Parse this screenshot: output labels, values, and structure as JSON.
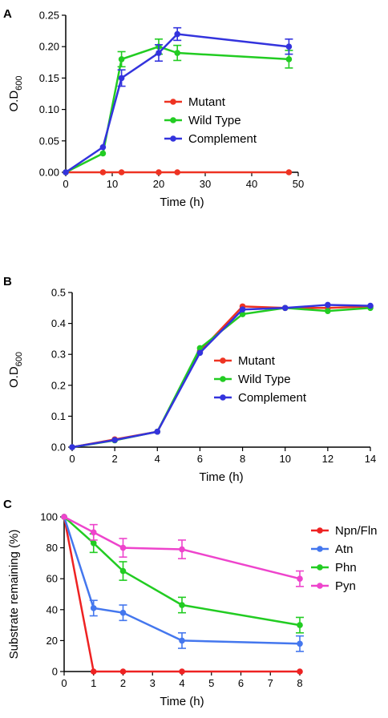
{
  "chart_data": [
    {
      "panel": "A",
      "type": "line",
      "xlabel": "Time (h)",
      "ylabel_main": "O.D",
      "ylabel_sub": "600",
      "xlim": [
        0,
        50
      ],
      "ylim": [
        0,
        0.25
      ],
      "xticks": [
        0,
        10,
        20,
        30,
        40,
        50
      ],
      "xtick_labels": [
        "0",
        "10",
        "20",
        "30",
        "40",
        "50"
      ],
      "yticks": [
        0,
        0.05,
        0.1,
        0.15,
        0.2,
        0.25
      ],
      "ytick_labels": [
        "0.00",
        "0.05",
        "0.10",
        "0.15",
        "0.20",
        "0.25"
      ],
      "legend_position": "center",
      "series": [
        {
          "name": "Mutant",
          "color": "#ee3322",
          "x": [
            0,
            8,
            12,
            20,
            24,
            48
          ],
          "y": [
            0,
            0,
            0,
            0,
            0,
            0
          ],
          "err": [
            0,
            0,
            0,
            0,
            0,
            0
          ]
        },
        {
          "name": "Wild Type",
          "color": "#22cc22",
          "x": [
            0,
            8,
            12,
            20,
            24,
            48
          ],
          "y": [
            0,
            0.03,
            0.18,
            0.2,
            0.19,
            0.18
          ],
          "err": [
            0,
            0,
            0.012,
            0.012,
            0.012,
            0.014
          ]
        },
        {
          "name": "Complement",
          "color": "#3333dd",
          "x": [
            0,
            8,
            12,
            20,
            24,
            48
          ],
          "y": [
            0,
            0.04,
            0.15,
            0.19,
            0.22,
            0.2
          ],
          "err": [
            0,
            0,
            0.013,
            0.013,
            0.01,
            0.012
          ]
        }
      ]
    },
    {
      "panel": "B",
      "type": "line",
      "xlabel": "Time (h)",
      "ylabel_main": "O.D",
      "ylabel_sub": "600",
      "xlim": [
        0,
        14
      ],
      "ylim": [
        0,
        0.5
      ],
      "xticks": [
        0,
        2,
        4,
        6,
        8,
        10,
        12,
        14
      ],
      "xtick_labels": [
        "0",
        "2",
        "4",
        "6",
        "8",
        "10",
        "12",
        "14"
      ],
      "yticks": [
        0,
        0.1,
        0.2,
        0.3,
        0.4,
        0.5
      ],
      "ytick_labels": [
        "0.0",
        "0.1",
        "0.2",
        "0.3",
        "0.4",
        "0.5"
      ],
      "legend_position": "center-right",
      "series": [
        {
          "name": "Mutant",
          "color": "#ee3322",
          "x": [
            0,
            2,
            4,
            6,
            8,
            10,
            12,
            14
          ],
          "y": [
            0,
            0.025,
            0.05,
            0.31,
            0.455,
            0.45,
            0.45,
            0.455
          ],
          "err": [
            0,
            0,
            0,
            0,
            0,
            0,
            0,
            0
          ]
        },
        {
          "name": "Wild Type",
          "color": "#22cc22",
          "x": [
            0,
            2,
            4,
            6,
            8,
            10,
            12,
            14
          ],
          "y": [
            0,
            0.022,
            0.05,
            0.32,
            0.43,
            0.45,
            0.44,
            0.45
          ],
          "err": [
            0,
            0,
            0,
            0,
            0,
            0,
            0,
            0
          ]
        },
        {
          "name": "Complement",
          "color": "#3333dd",
          "x": [
            0,
            2,
            4,
            6,
            8,
            10,
            12,
            14
          ],
          "y": [
            0,
            0.023,
            0.05,
            0.305,
            0.445,
            0.45,
            0.46,
            0.457
          ],
          "err": [
            0,
            0,
            0,
            0,
            0,
            0,
            0,
            0
          ]
        }
      ]
    },
    {
      "panel": "C",
      "type": "line",
      "xlabel": "Time (h)",
      "ylabel": "Substrate remaining (%)",
      "xlim": [
        0,
        8
      ],
      "ylim": [
        0,
        100
      ],
      "xticks": [
        0,
        1,
        2,
        3,
        4,
        5,
        6,
        7,
        8
      ],
      "xtick_labels": [
        "0",
        "1",
        "2",
        "3",
        "4",
        "5",
        "6",
        "7",
        "8"
      ],
      "yticks": [
        0,
        20,
        40,
        60,
        80,
        100
      ],
      "ytick_labels": [
        "0",
        "20",
        "40",
        "60",
        "80",
        "100"
      ],
      "legend_position": "top-right outside",
      "series": [
        {
          "name": "Npn/Fln",
          "color": "#ee2222",
          "x": [
            0,
            1,
            2,
            4,
            8
          ],
          "y": [
            100,
            0,
            0,
            0,
            0
          ],
          "err": [
            0,
            0,
            0,
            0,
            0
          ]
        },
        {
          "name": "Atn",
          "color": "#4477ee",
          "x": [
            0,
            1,
            2,
            4,
            8
          ],
          "y": [
            100,
            41,
            38,
            20,
            18
          ],
          "err": [
            0,
            5,
            5,
            5,
            5
          ]
        },
        {
          "name": "Phn",
          "color": "#22cc22",
          "x": [
            0,
            1,
            2,
            4,
            8
          ],
          "y": [
            100,
            83,
            65,
            43,
            30
          ],
          "err": [
            0,
            6,
            6,
            5,
            5
          ]
        },
        {
          "name": "Pyn",
          "color": "#ee44cc",
          "x": [
            0,
            1,
            2,
            4,
            8
          ],
          "y": [
            100,
            90,
            80,
            79,
            60
          ],
          "err": [
            0,
            5,
            6,
            6,
            5
          ]
        }
      ]
    }
  ]
}
